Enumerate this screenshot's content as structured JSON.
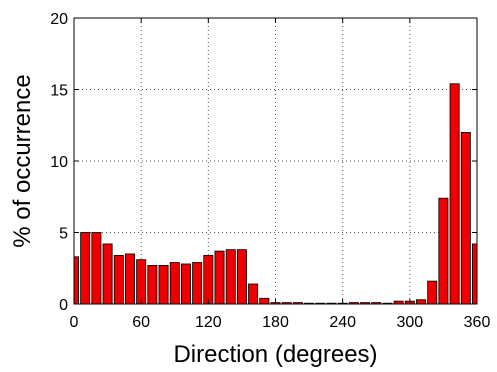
{
  "chart_data": {
    "type": "bar",
    "xlabel": "Direction (degrees)",
    "ylabel": "% of occurrence",
    "xlim": [
      0,
      360
    ],
    "ylim": [
      0,
      20
    ],
    "xticks": [
      0,
      60,
      120,
      180,
      240,
      300,
      360
    ],
    "yticks": [
      0,
      5,
      10,
      15,
      20
    ],
    "grid": true,
    "bin_width": 10,
    "bar_color": "#ee0000",
    "x": [
      0,
      10,
      20,
      30,
      40,
      50,
      60,
      70,
      80,
      90,
      100,
      110,
      120,
      130,
      140,
      150,
      160,
      170,
      180,
      190,
      200,
      210,
      220,
      230,
      240,
      250,
      260,
      270,
      280,
      290,
      300,
      310,
      320,
      330,
      340,
      350,
      360
    ],
    "values": [
      3.3,
      5.0,
      5.0,
      4.2,
      3.4,
      3.5,
      3.1,
      2.7,
      2.7,
      2.9,
      2.8,
      2.9,
      3.4,
      3.7,
      3.8,
      3.8,
      1.4,
      0.4,
      0.1,
      0.1,
      0.1,
      0.05,
      0.05,
      0.0,
      0.05,
      0.1,
      0.1,
      0.1,
      0.05,
      0.2,
      0.2,
      0.3,
      1.6,
      7.4,
      15.4,
      12.0,
      4.2
    ]
  }
}
